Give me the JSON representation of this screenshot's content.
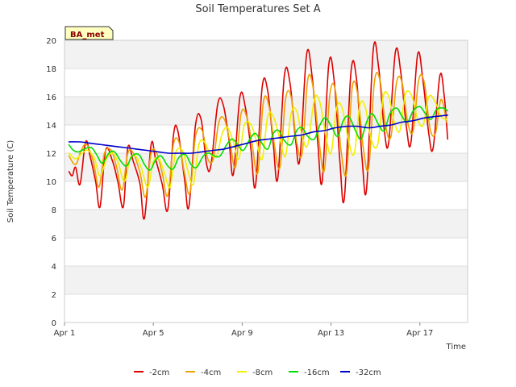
{
  "chart_data": {
    "type": "line",
    "title": "Soil Temperatures Set A",
    "xlabel": "Time",
    "ylabel": "Soil Temperature (C)",
    "ylim": [
      0,
      20
    ],
    "xlim": [
      "Apr 1",
      "Apr 19"
    ],
    "y_ticks": [
      "0",
      "2",
      "4",
      "6",
      "8",
      "10",
      "12",
      "14",
      "16",
      "18",
      "20"
    ],
    "x_ticks": [
      {
        "day": 1,
        "label": "Apr 1"
      },
      {
        "day": 5,
        "label": "Apr 5"
      },
      {
        "day": 9,
        "label": "Apr 9"
      },
      {
        "day": 13,
        "label": "Apr 13"
      },
      {
        "day": 17,
        "label": "Apr 17"
      }
    ],
    "grid": true,
    "background_bands": true,
    "legend_position": "bottom",
    "site_badge": "BA_met",
    "x_unit": "day of April",
    "series": [
      {
        "name": "-2cm",
        "color": "#dd0000",
        "x": [
          1.2,
          1.35,
          1.5,
          1.7,
          1.95,
          2.15,
          2.4,
          2.6,
          2.85,
          3.15,
          3.4,
          3.65,
          3.85,
          4.1,
          4.4,
          4.6,
          4.9,
          5.1,
          5.4,
          5.65,
          5.9,
          6.1,
          6.4,
          6.6,
          6.9,
          7.15,
          7.4,
          7.6,
          7.9,
          8.15,
          8.4,
          8.6,
          8.9,
          9.15,
          9.4,
          9.6,
          9.9,
          10.15,
          10.4,
          10.6,
          10.9,
          11.15,
          11.4,
          11.6,
          11.9,
          12.15,
          12.4,
          12.6,
          12.9,
          13.15,
          13.4,
          13.6,
          13.9,
          14.15,
          14.4,
          14.6,
          14.9,
          15.15,
          15.4,
          15.6,
          15.9,
          16.15,
          16.4,
          16.6,
          16.9,
          17.15,
          17.4,
          17.6,
          17.9,
          18.1,
          18.25
        ],
        "y": [
          10.7,
          10.4,
          11.0,
          9.8,
          12.8,
          11.8,
          10.0,
          8.2,
          12.2,
          11.5,
          10.0,
          8.2,
          12.4,
          11.4,
          9.8,
          7.4,
          12.6,
          11.6,
          9.8,
          8.0,
          13.2,
          13.6,
          10.2,
          8.2,
          14.0,
          14.4,
          11.2,
          11.2,
          15.5,
          15.4,
          13.0,
          10.5,
          16.0,
          15.2,
          12.2,
          9.7,
          16.7,
          16.4,
          12.6,
          10.2,
          17.5,
          17.0,
          13.0,
          11.6,
          19.0,
          17.4,
          12.8,
          10.0,
          18.3,
          17.0,
          11.4,
          8.8,
          17.8,
          17.2,
          11.6,
          9.5,
          19.3,
          18.0,
          13.6,
          12.8,
          19.2,
          17.6,
          13.8,
          12.8,
          19.0,
          17.0,
          13.4,
          12.4,
          17.5,
          16.0,
          13.0
        ]
      },
      {
        "name": "-4cm",
        "color": "#f0a000",
        "x": [
          1.2,
          1.5,
          1.75,
          2.0,
          2.3,
          2.55,
          2.8,
          3.1,
          3.35,
          3.6,
          3.85,
          4.1,
          4.4,
          4.65,
          4.9,
          5.15,
          5.4,
          5.65,
          5.9,
          6.15,
          6.4,
          6.65,
          6.9,
          7.2,
          7.45,
          7.7,
          7.95,
          8.2,
          8.45,
          8.7,
          8.95,
          9.2,
          9.45,
          9.7,
          9.95,
          10.2,
          10.45,
          10.7,
          10.95,
          11.2,
          11.45,
          11.7,
          11.95,
          12.2,
          12.45,
          12.7,
          12.95,
          13.2,
          13.45,
          13.7,
          13.95,
          14.2,
          14.45,
          14.7,
          14.95,
          15.2,
          15.45,
          15.7,
          15.95,
          16.2,
          16.45,
          16.7,
          16.95,
          17.2,
          17.45,
          17.7,
          17.95,
          18.2
        ],
        "y": [
          11.8,
          11.2,
          12.2,
          12.6,
          11.4,
          9.6,
          12.0,
          12.2,
          11.0,
          9.4,
          12.0,
          12.0,
          10.6,
          8.9,
          12.0,
          12.0,
          10.6,
          9.0,
          12.6,
          12.8,
          10.6,
          9.2,
          13.2,
          13.6,
          11.6,
          11.6,
          14.2,
          14.4,
          12.8,
          11.0,
          14.8,
          14.6,
          12.6,
          10.6,
          15.6,
          15.4,
          12.6,
          11.0,
          15.8,
          16.0,
          12.8,
          12.0,
          17.2,
          16.6,
          13.0,
          10.8,
          16.2,
          16.4,
          12.2,
          10.6,
          16.6,
          16.2,
          12.4,
          11.0,
          17.0,
          17.2,
          14.0,
          13.2,
          17.0,
          17.0,
          14.2,
          13.6,
          17.2,
          17.0,
          13.8,
          13.4,
          15.8,
          14.2
        ]
      },
      {
        "name": "-8cm",
        "color": "#f0f000",
        "x": [
          1.2,
          1.5,
          1.8,
          2.05,
          2.35,
          2.6,
          2.9,
          3.15,
          3.4,
          3.7,
          3.95,
          4.2,
          4.45,
          4.75,
          5.0,
          5.25,
          5.5,
          5.75,
          6.0,
          6.3,
          6.55,
          6.8,
          7.05,
          7.3,
          7.55,
          7.85,
          8.1,
          8.35,
          8.6,
          8.85,
          9.1,
          9.4,
          9.65,
          9.9,
          10.15,
          10.4,
          10.7,
          10.95,
          11.2,
          11.45,
          11.7,
          11.95,
          12.25,
          12.5,
          12.75,
          13.0,
          13.25,
          13.5,
          13.8,
          14.05,
          14.3,
          14.55,
          14.8,
          15.1,
          15.35,
          15.6,
          15.85,
          16.1,
          16.35,
          16.65,
          16.9,
          17.15,
          17.4,
          17.7,
          17.95,
          18.2
        ],
        "y": [
          12.0,
          11.6,
          12.0,
          12.2,
          11.6,
          10.4,
          11.6,
          12.0,
          11.4,
          10.0,
          11.6,
          11.8,
          11.0,
          9.6,
          11.4,
          11.6,
          10.6,
          9.6,
          12.0,
          12.2,
          10.8,
          9.8,
          12.6,
          12.8,
          12.0,
          11.8,
          13.4,
          13.8,
          12.8,
          11.6,
          14.0,
          14.0,
          12.8,
          11.6,
          14.6,
          14.6,
          13.0,
          11.8,
          14.8,
          15.0,
          13.2,
          12.6,
          15.8,
          15.6,
          13.4,
          12.0,
          15.2,
          15.2,
          12.8,
          12.0,
          15.4,
          15.2,
          13.0,
          12.6,
          16.0,
          16.0,
          14.2,
          13.6,
          16.2,
          16.0,
          14.4,
          14.0,
          16.0,
          15.6,
          14.6,
          14.4
        ]
      },
      {
        "name": "-16cm",
        "color": "#00dd00",
        "x": [
          1.2,
          1.4,
          1.65,
          1.9,
          2.2,
          2.45,
          2.7,
          3.0,
          3.25,
          3.55,
          3.8,
          4.05,
          4.35,
          4.6,
          4.85,
          5.1,
          5.35,
          5.65,
          5.9,
          6.15,
          6.45,
          6.7,
          6.95,
          7.25,
          7.5,
          7.75,
          8.0,
          8.3,
          8.55,
          8.8,
          9.05,
          9.35,
          9.6,
          9.85,
          10.15,
          10.4,
          10.65,
          10.9,
          11.2,
          11.45,
          11.7,
          11.95,
          12.25,
          12.5,
          12.75,
          13.05,
          13.3,
          13.55,
          13.8,
          14.1,
          14.35,
          14.6,
          14.85,
          15.15,
          15.4,
          15.65,
          15.95,
          16.2,
          16.45,
          16.7,
          17.0,
          17.25,
          17.5,
          17.75,
          18.05,
          18.25
        ],
        "y": [
          12.6,
          12.2,
          12.1,
          12.3,
          12.4,
          11.9,
          11.3,
          12.0,
          12.1,
          11.4,
          11.1,
          11.8,
          11.9,
          11.2,
          10.8,
          11.5,
          11.8,
          11.1,
          10.9,
          11.7,
          11.9,
          11.2,
          11.0,
          11.8,
          12.0,
          11.8,
          11.8,
          12.6,
          13.0,
          12.6,
          12.2,
          13.0,
          13.4,
          12.8,
          12.3,
          13.4,
          13.6,
          12.9,
          12.6,
          13.6,
          13.8,
          13.2,
          13.0,
          14.0,
          14.5,
          13.8,
          13.2,
          14.3,
          14.6,
          13.6,
          13.0,
          14.2,
          14.8,
          14.0,
          13.6,
          14.8,
          15.2,
          14.6,
          14.2,
          15.0,
          15.3,
          14.8,
          14.4,
          15.1,
          15.2,
          15.0
        ]
      },
      {
        "name": "-32cm",
        "color": "#0000cc",
        "x": [
          1.2,
          1.7,
          2.2,
          2.7,
          3.2,
          3.7,
          4.2,
          4.7,
          5.2,
          5.7,
          6.2,
          6.7,
          7.2,
          7.7,
          8.2,
          8.7,
          9.2,
          9.7,
          10.2,
          10.7,
          11.2,
          11.7,
          12.2,
          12.7,
          13.2,
          13.7,
          14.2,
          14.7,
          15.2,
          15.7,
          16.2,
          16.7,
          17.2,
          17.7,
          18.25
        ],
        "y": [
          12.8,
          12.8,
          12.7,
          12.6,
          12.5,
          12.4,
          12.3,
          12.2,
          12.1,
          12.0,
          12.0,
          12.0,
          12.1,
          12.2,
          12.3,
          12.5,
          12.7,
          12.9,
          13.0,
          13.1,
          13.2,
          13.3,
          13.5,
          13.6,
          13.8,
          13.9,
          13.9,
          13.8,
          13.9,
          14.0,
          14.2,
          14.3,
          14.5,
          14.6,
          14.7
        ]
      }
    ]
  }
}
